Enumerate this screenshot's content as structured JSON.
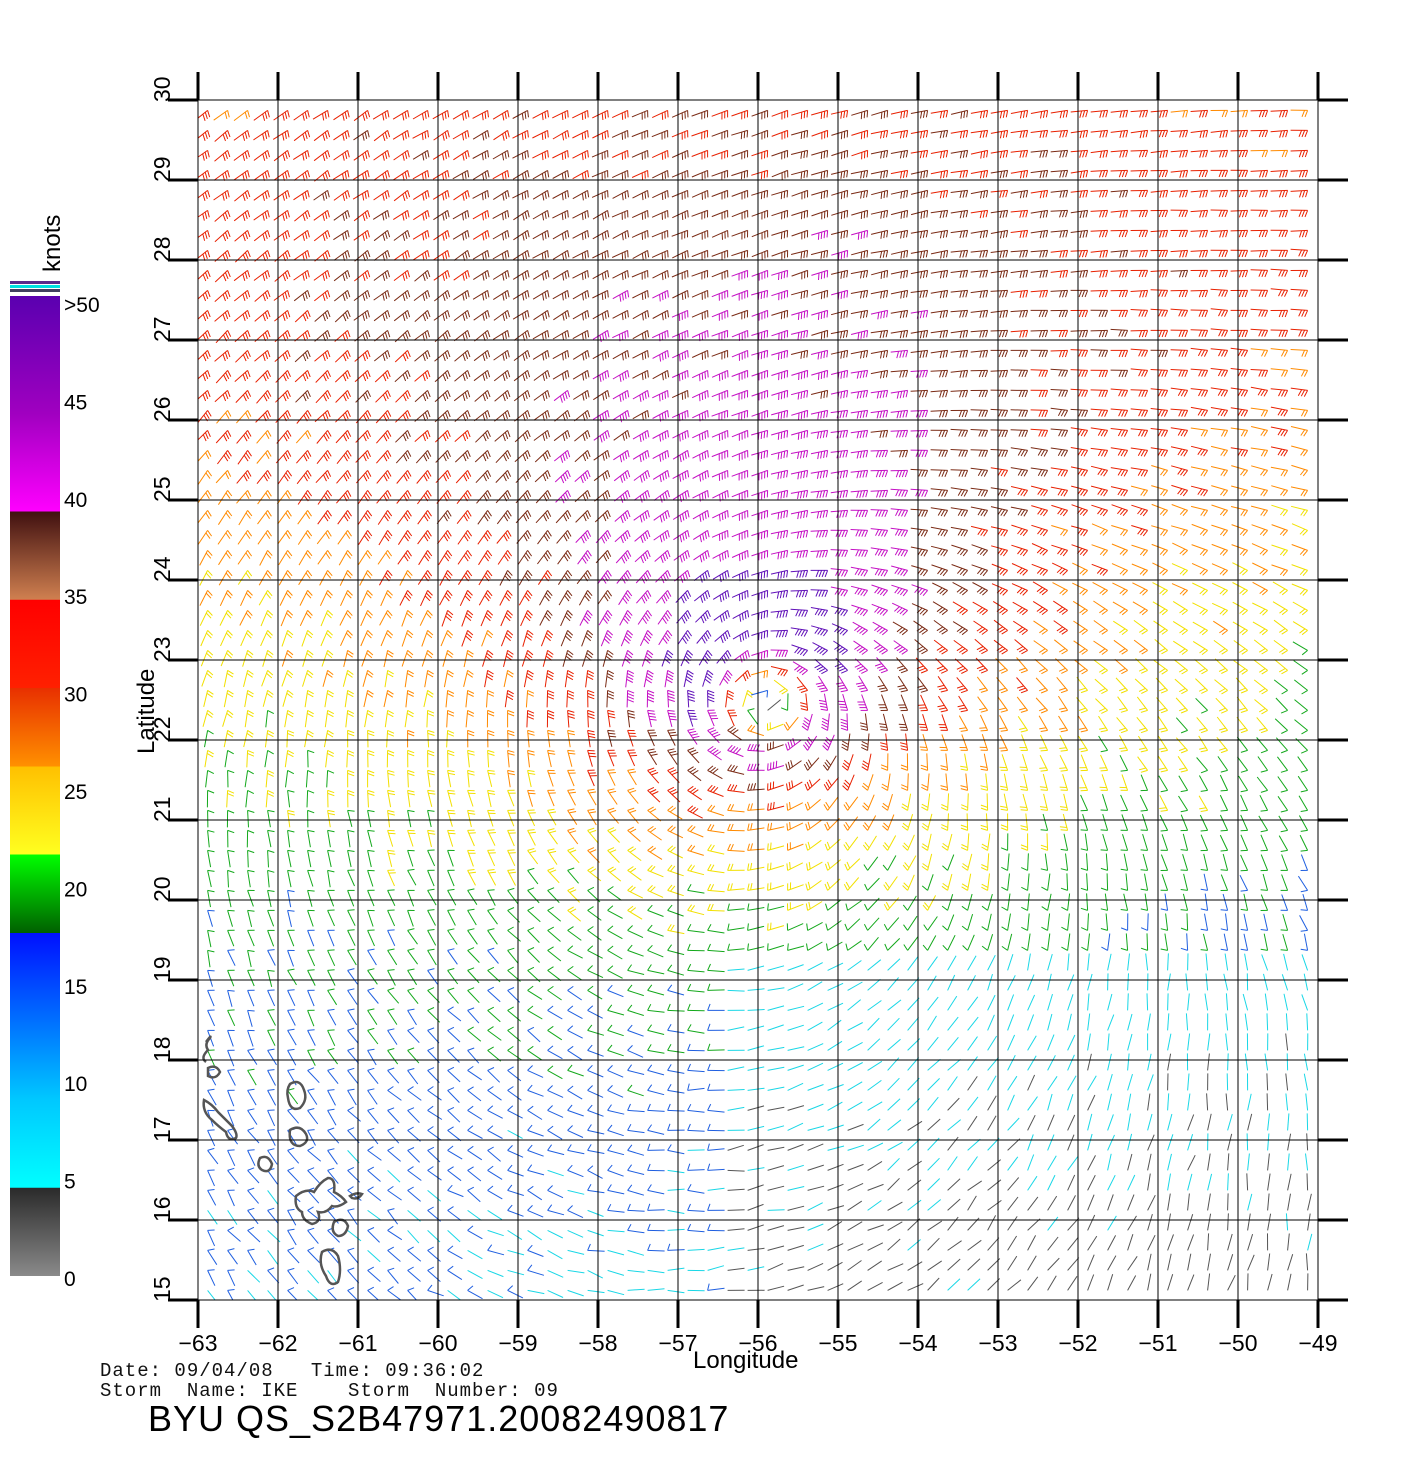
{
  "map": {
    "x_axis": {
      "label": "Longitude",
      "min": -63,
      "max": -49,
      "ticks": [
        "−63",
        "−62",
        "−61",
        "−60",
        "−59",
        "−58",
        "−57",
        "−56",
        "−55",
        "−54",
        "−53",
        "−52",
        "−51",
        "−50",
        "−49"
      ]
    },
    "y_axis": {
      "label": "Latitude",
      "min": 15,
      "max": 30,
      "ticks": [
        "15",
        "16",
        "17",
        "18",
        "19",
        "20",
        "21",
        "22",
        "23",
        "24",
        "25",
        "26",
        "27",
        "28",
        "29",
        "30"
      ]
    },
    "grid": true,
    "storm_center": {
      "lon": -55.9,
      "lat": 22.6
    },
    "max_wind_knots": 52
  },
  "colorbar": {
    "unit": "knots",
    "labels": [
      ">50",
      "45",
      "40",
      "35",
      "30",
      "25",
      "20",
      "15",
      "10",
      "5",
      "0"
    ],
    "bins": [
      {
        "min": 0,
        "max": 5,
        "color": "#555555"
      },
      {
        "min": 5,
        "max": 10,
        "color": "#19d7e6"
      },
      {
        "min": 10,
        "max": 15,
        "color": "#1f5fe0"
      },
      {
        "min": 15,
        "max": 20,
        "color": "#13a81b"
      },
      {
        "min": 20,
        "max": 25,
        "color": "#f2e000"
      },
      {
        "min": 25,
        "max": 30,
        "color": "#ff8a00"
      },
      {
        "min": 30,
        "max": 35,
        "color": "#e82000"
      },
      {
        "min": 35,
        "max": 40,
        "color": "#7a2a14"
      },
      {
        "min": 40,
        "max": 50,
        "color": "#c410c4"
      },
      {
        "min": 50,
        "max": 70,
        "color": "#6010b8"
      }
    ]
  },
  "info": {
    "date_line": "Date: 09/04/08   Time: 09:36:02",
    "storm_line": "Storm  Name: IKE    Storm  Number: 09",
    "product_id": "BYU  QS_S2B47971.20082490817"
  }
}
